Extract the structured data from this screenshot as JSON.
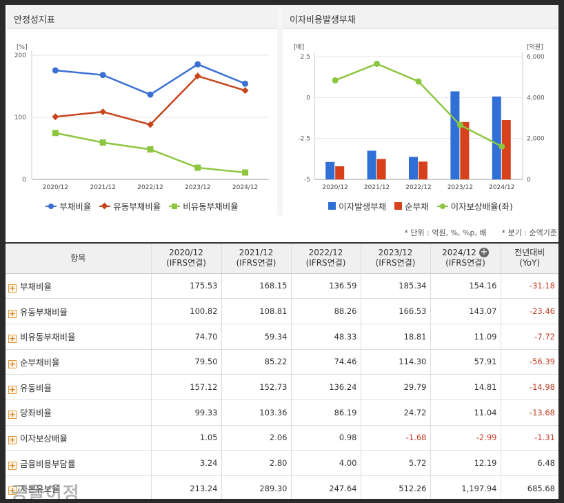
{
  "left_chart": {
    "title": "안정성지표",
    "unit": "[%]"
  },
  "right_chart": {
    "title": "이자비용발생부채",
    "left_unit": "[배]",
    "right_unit": "[억원]"
  },
  "chart_data": [
    {
      "type": "line",
      "title": "안정성지표",
      "ylabel": "[%]",
      "categories": [
        "2020/12",
        "2021/12",
        "2022/12",
        "2023/12",
        "2024/12"
      ],
      "ylim": [
        0,
        200
      ],
      "yticks": [
        0,
        100,
        200
      ],
      "legend_position": "bottom",
      "grid": true,
      "series": [
        {
          "name": "부채비율",
          "values": [
            175.53,
            168.15,
            136.59,
            185.34,
            154.16
          ],
          "color": "#3b6fd4",
          "marker": "circle"
        },
        {
          "name": "유동부채비율",
          "values": [
            100.82,
            108.81,
            88.26,
            166.53,
            143.07
          ],
          "color": "#c8451c",
          "marker": "diamond"
        },
        {
          "name": "비유동부채비율",
          "values": [
            74.7,
            59.34,
            48.33,
            18.81,
            11.09
          ],
          "color": "#8cc63f",
          "marker": "square"
        }
      ]
    },
    {
      "type": "bar",
      "title": "이자비용발생부채",
      "categories": [
        "2020/12",
        "2021/12",
        "2022/12",
        "2023/12",
        "2024/12"
      ],
      "ylabel_left": "[배]",
      "ylabel_right": "[억원]",
      "ylim_left": [
        -5,
        2.5
      ],
      "yticks_left": [
        "2.5",
        "0",
        "-2.5",
        "-5"
      ],
      "ylim_right": [
        0,
        6000
      ],
      "yticks_right": [
        "6,000",
        "4,000",
        "2,000",
        "0"
      ],
      "legend_position": "bottom",
      "grid": true,
      "series": [
        {
          "name": "이자발생부채",
          "kind": "bar",
          "axis": "right",
          "values": [
            850,
            1400,
            1100,
            4300,
            4050
          ],
          "color": "#2f6fd6"
        },
        {
          "name": "순부채",
          "kind": "bar",
          "axis": "right",
          "values": [
            640,
            1000,
            870,
            2800,
            2900
          ],
          "color": "#d7411b"
        },
        {
          "name": "이자보상배율(좌)",
          "kind": "line",
          "axis": "left",
          "values": [
            1.05,
            2.06,
            0.98,
            -1.68,
            -2.99
          ],
          "color": "#8cc63f"
        }
      ]
    }
  ],
  "notes": {
    "unit": "* 단위 : 억원, %, %p, 배",
    "quarter": "* 분기 : 순액기준"
  },
  "table": {
    "headers": [
      {
        "l1": "항목",
        "l2": ""
      },
      {
        "l1": "2020/12",
        "l2": "(IFRS연결)"
      },
      {
        "l1": "2021/12",
        "l2": "(IFRS연결)"
      },
      {
        "l1": "2022/12",
        "l2": "(IFRS연결)"
      },
      {
        "l1": "2023/12",
        "l2": "(IFRS연결)"
      },
      {
        "l1": "2024/12",
        "l2": "(IFRS연결)"
      },
      {
        "l1": "전년대비",
        "l2": "(YoY)"
      }
    ],
    "rows": [
      {
        "name": "부채비율",
        "values": [
          "175.53",
          "168.15",
          "136.59",
          "185.34",
          "154.16",
          "-31.18"
        ]
      },
      {
        "name": "유동부채비율",
        "values": [
          "100.82",
          "108.81",
          "88.26",
          "166.53",
          "143.07",
          "-23.46"
        ]
      },
      {
        "name": "비유동부채비율",
        "values": [
          "74.70",
          "59.34",
          "48.33",
          "18.81",
          "11.09",
          "-7.72"
        ]
      },
      {
        "name": "순부채비율",
        "values": [
          "79.50",
          "85.22",
          "74.46",
          "114.30",
          "57.91",
          "-56.39"
        ]
      },
      {
        "name": "유동비율",
        "values": [
          "157.12",
          "152.73",
          "136.24",
          "29.79",
          "14.81",
          "-14.98"
        ]
      },
      {
        "name": "당좌비율",
        "values": [
          "99.33",
          "103.36",
          "86.19",
          "24.72",
          "11.04",
          "-13.68"
        ]
      },
      {
        "name": "이자보상배율",
        "values": [
          "1.05",
          "2.06",
          "0.98",
          "-1.68",
          "-2.99",
          "-1.31"
        ]
      },
      {
        "name": "금융비용부담률",
        "values": [
          "3.24",
          "2.80",
          "4.00",
          "5.72",
          "12.19",
          "6.48"
        ]
      },
      {
        "name": "자본유보율",
        "values": [
          "213.24",
          "289.30",
          "247.64",
          "512.26",
          "1,197.94",
          "685.68"
        ]
      }
    ]
  },
  "watermark": "공돌이정"
}
